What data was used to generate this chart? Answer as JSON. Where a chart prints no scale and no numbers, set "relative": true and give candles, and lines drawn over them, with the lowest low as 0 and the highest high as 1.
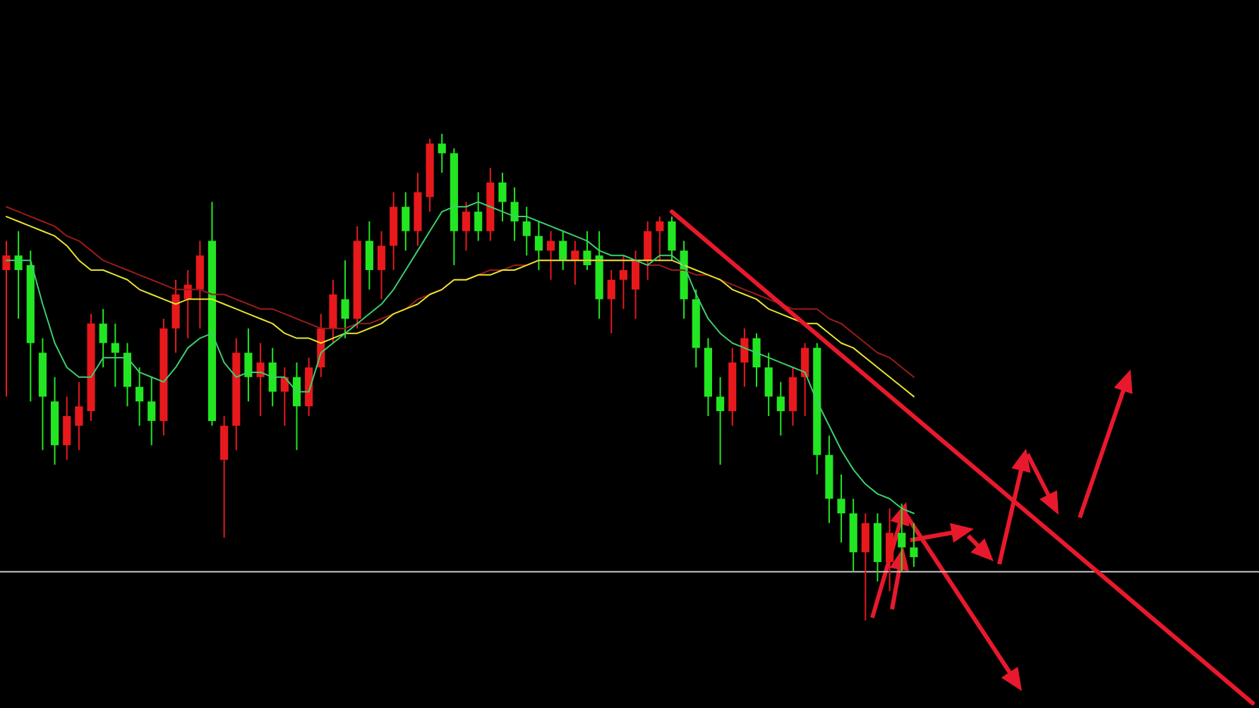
{
  "chart_data": {
    "type": "candlestick",
    "relative": true,
    "tick_labels": false,
    "categories": [
      null,
      null,
      null,
      null,
      null,
      null,
      null,
      null,
      null,
      null,
      null,
      null,
      null,
      null,
      null,
      null,
      null,
      null,
      null,
      null,
      null,
      null,
      null,
      null,
      null,
      null,
      null,
      null,
      null,
      null,
      null,
      null,
      null,
      null,
      null,
      null,
      null,
      null,
      null,
      null,
      null,
      null,
      null,
      null,
      null,
      null,
      null,
      null,
      null,
      null,
      null,
      null,
      null,
      null,
      null,
      null,
      null,
      null,
      null,
      null,
      null,
      null,
      null,
      null,
      null,
      null,
      null,
      null,
      null,
      null,
      null,
      null,
      null,
      null,
      null,
      null,
      null,
      null,
      null,
      null,
      null,
      null,
      null,
      null,
      null,
      null,
      null,
      null,
      null,
      null,
      null,
      null,
      null,
      null,
      null,
      null,
      null,
      null,
      null,
      null,
      null,
      null,
      null,
      null
    ],
    "ohlc": [
      [
        0.72,
        0.78,
        0.46,
        0.75
      ],
      [
        0.75,
        0.8,
        0.62,
        0.72
      ],
      [
        0.73,
        0.76,
        0.45,
        0.57
      ],
      [
        0.55,
        0.58,
        0.35,
        0.46
      ],
      [
        0.45,
        0.5,
        0.32,
        0.36
      ],
      [
        0.36,
        0.46,
        0.33,
        0.42
      ],
      [
        0.4,
        0.49,
        0.35,
        0.44
      ],
      [
        0.43,
        0.63,
        0.41,
        0.61
      ],
      [
        0.61,
        0.64,
        0.52,
        0.57
      ],
      [
        0.57,
        0.61,
        0.48,
        0.55
      ],
      [
        0.55,
        0.57,
        0.44,
        0.48
      ],
      [
        0.48,
        0.52,
        0.4,
        0.45
      ],
      [
        0.45,
        0.5,
        0.36,
        0.41
      ],
      [
        0.41,
        0.62,
        0.38,
        0.6
      ],
      [
        0.6,
        0.7,
        0.55,
        0.67
      ],
      [
        0.66,
        0.72,
        0.58,
        0.69
      ],
      [
        0.68,
        0.78,
        0.6,
        0.75
      ],
      [
        0.78,
        0.86,
        0.4,
        0.41
      ],
      [
        0.33,
        0.42,
        0.17,
        0.4
      ],
      [
        0.4,
        0.58,
        0.35,
        0.55
      ],
      [
        0.55,
        0.6,
        0.45,
        0.5
      ],
      [
        0.5,
        0.57,
        0.42,
        0.53
      ],
      [
        0.53,
        0.56,
        0.44,
        0.47
      ],
      [
        0.47,
        0.52,
        0.4,
        0.5
      ],
      [
        0.5,
        0.53,
        0.35,
        0.44
      ],
      [
        0.44,
        0.54,
        0.42,
        0.52
      ],
      [
        0.52,
        0.63,
        0.5,
        0.6
      ],
      [
        0.6,
        0.7,
        0.57,
        0.67
      ],
      [
        0.66,
        0.74,
        0.58,
        0.62
      ],
      [
        0.62,
        0.81,
        0.6,
        0.78
      ],
      [
        0.78,
        0.82,
        0.68,
        0.72
      ],
      [
        0.72,
        0.8,
        0.66,
        0.77
      ],
      [
        0.77,
        0.88,
        0.72,
        0.85
      ],
      [
        0.85,
        0.88,
        0.76,
        0.8
      ],
      [
        0.8,
        0.92,
        0.77,
        0.88
      ],
      [
        0.87,
        0.99,
        0.84,
        0.98
      ],
      [
        0.98,
        1.0,
        0.92,
        0.96
      ],
      [
        0.96,
        0.97,
        0.73,
        0.8
      ],
      [
        0.8,
        0.86,
        0.76,
        0.84
      ],
      [
        0.84,
        0.88,
        0.78,
        0.8
      ],
      [
        0.8,
        0.93,
        0.78,
        0.9
      ],
      [
        0.9,
        0.92,
        0.82,
        0.86
      ],
      [
        0.86,
        0.89,
        0.78,
        0.82
      ],
      [
        0.82,
        0.85,
        0.75,
        0.79
      ],
      [
        0.79,
        0.82,
        0.72,
        0.76
      ],
      [
        0.76,
        0.8,
        0.7,
        0.78
      ],
      [
        0.78,
        0.8,
        0.72,
        0.74
      ],
      [
        0.74,
        0.78,
        0.69,
        0.76
      ],
      [
        0.76,
        0.8,
        0.72,
        0.73
      ],
      [
        0.75,
        0.8,
        0.62,
        0.66
      ],
      [
        0.66,
        0.72,
        0.59,
        0.7
      ],
      [
        0.7,
        0.75,
        0.64,
        0.72
      ],
      [
        0.68,
        0.76,
        0.62,
        0.74
      ],
      [
        0.74,
        0.82,
        0.7,
        0.8
      ],
      [
        0.8,
        0.83,
        0.74,
        0.82
      ],
      [
        0.82,
        0.83,
        0.74,
        0.76
      ],
      [
        0.76,
        0.78,
        0.62,
        0.66
      ],
      [
        0.66,
        0.68,
        0.52,
        0.56
      ],
      [
        0.56,
        0.58,
        0.42,
        0.46
      ],
      [
        0.46,
        0.5,
        0.32,
        0.43
      ],
      [
        0.43,
        0.56,
        0.4,
        0.53
      ],
      [
        0.53,
        0.6,
        0.48,
        0.58
      ],
      [
        0.58,
        0.59,
        0.48,
        0.52
      ],
      [
        0.52,
        0.55,
        0.42,
        0.46
      ],
      [
        0.46,
        0.49,
        0.38,
        0.43
      ],
      [
        0.43,
        0.52,
        0.4,
        0.5
      ],
      [
        0.5,
        0.57,
        0.42,
        0.56
      ],
      [
        0.56,
        0.57,
        0.3,
        0.34
      ],
      [
        0.34,
        0.38,
        0.2,
        0.25
      ],
      [
        0.25,
        0.3,
        0.16,
        0.22
      ],
      [
        0.22,
        0.25,
        0.1,
        0.14
      ],
      [
        0.14,
        0.22,
        0.0,
        0.2
      ],
      [
        0.2,
        0.22,
        0.08,
        0.12
      ],
      [
        0.12,
        0.23,
        0.06,
        0.18
      ],
      [
        0.18,
        0.24,
        0.1,
        0.15
      ],
      [
        0.15,
        0.2,
        0.11,
        0.13
      ],
      null,
      null,
      null,
      null,
      null,
      null,
      null,
      null,
      null,
      null,
      null,
      null,
      null,
      null,
      null,
      null,
      null,
      null,
      null,
      null,
      null,
      null,
      null,
      null,
      null,
      null,
      null,
      null
    ],
    "colors": [
      "#e8191c",
      "#22e622",
      "#22e622",
      "#22e622",
      "#22e622",
      "#e8191c",
      "#e8191c",
      "#e8191c",
      "#22e622",
      "#22e622",
      "#22e622",
      "#22e622",
      "#22e622",
      "#e8191c",
      "#e8191c",
      "#e8191c",
      "#e8191c",
      "#22e622",
      "#e8191c",
      "#e8191c",
      "#22e622",
      "#e8191c",
      "#22e622",
      "#e8191c",
      "#22e622",
      "#e8191c",
      "#e8191c",
      "#e8191c",
      "#22e622",
      "#e8191c",
      "#22e622",
      "#e8191c",
      "#e8191c",
      "#22e622",
      "#e8191c",
      "#e8191c",
      "#22e622",
      "#22e622",
      "#e8191c",
      "#22e622",
      "#e8191c",
      "#22e622",
      "#22e622",
      "#22e622",
      "#22e622",
      "#e8191c",
      "#22e622",
      "#e8191c",
      "#22e622",
      "#22e622",
      "#e8191c",
      "#e8191c",
      "#e8191c",
      "#e8191c",
      "#e8191c",
      "#22e622",
      "#22e622",
      "#22e622",
      "#22e622",
      "#22e622",
      "#e8191c",
      "#e8191c",
      "#22e622",
      "#22e622",
      "#22e622",
      "#e8191c",
      "#e8191c",
      "#22e622",
      "#22e622",
      "#22e622",
      "#22e622",
      "#e8191c",
      "#22e622",
      "#e8191c",
      "#22e622",
      "#22e622",
      null,
      null,
      null,
      null,
      null,
      null,
      null,
      null,
      null,
      null,
      null,
      null,
      null,
      null,
      null,
      null,
      null,
      null,
      null,
      null,
      null,
      null,
      null,
      null,
      null,
      null,
      null,
      null
    ],
    "series": [
      {
        "type": "line",
        "color": "#9b1b1b",
        "values": [
          0.85,
          0.84,
          0.83,
          0.82,
          0.81,
          0.79,
          0.78,
          0.76,
          0.74,
          0.73,
          0.72,
          0.71,
          0.7,
          0.69,
          0.68,
          0.68,
          0.68,
          0.67,
          0.67,
          0.66,
          0.65,
          0.64,
          0.64,
          0.63,
          0.62,
          0.61,
          0.6,
          0.6,
          0.6,
          0.61,
          0.61,
          0.62,
          0.63,
          0.64,
          0.66,
          0.67,
          0.68,
          0.7,
          0.7,
          0.71,
          0.72,
          0.72,
          0.73,
          0.73,
          0.74,
          0.74,
          0.74,
          0.74,
          0.74,
          0.74,
          0.74,
          0.74,
          0.74,
          0.73,
          0.73,
          0.72,
          0.72,
          0.71,
          0.71,
          0.7,
          0.69,
          0.68,
          0.67,
          0.66,
          0.65,
          0.64,
          0.64,
          0.64,
          0.62,
          0.61,
          0.59,
          0.57,
          0.55,
          0.54,
          0.52,
          0.5,
          null,
          null,
          null,
          null,
          null,
          null,
          null,
          null,
          null,
          null,
          null,
          null,
          null,
          null,
          null,
          null,
          null,
          null,
          null,
          null,
          null,
          null,
          null,
          null,
          null,
          null,
          null,
          null
        ]
      },
      {
        "type": "line",
        "color": "#e6e62e",
        "values": [
          0.83,
          0.82,
          0.81,
          0.8,
          0.79,
          0.77,
          0.74,
          0.72,
          0.72,
          0.71,
          0.7,
          0.68,
          0.67,
          0.66,
          0.65,
          0.66,
          0.66,
          0.66,
          0.65,
          0.64,
          0.63,
          0.62,
          0.61,
          0.59,
          0.58,
          0.58,
          0.57,
          0.58,
          0.59,
          0.59,
          0.6,
          0.61,
          0.63,
          0.64,
          0.65,
          0.67,
          0.68,
          0.7,
          0.7,
          0.71,
          0.71,
          0.72,
          0.72,
          0.73,
          0.74,
          0.74,
          0.74,
          0.74,
          0.74,
          0.74,
          0.74,
          0.74,
          0.74,
          0.74,
          0.74,
          0.74,
          0.73,
          0.72,
          0.71,
          0.7,
          0.68,
          0.67,
          0.66,
          0.64,
          0.63,
          0.62,
          0.61,
          0.61,
          0.59,
          0.57,
          0.56,
          0.54,
          0.52,
          0.5,
          0.48,
          0.46,
          null,
          null,
          null,
          null,
          null,
          null,
          null,
          null,
          null,
          null,
          null,
          null,
          null,
          null,
          null,
          null,
          null,
          null,
          null,
          null,
          null,
          null,
          null,
          null,
          null,
          null,
          null,
          null
        ]
      },
      {
        "type": "line",
        "color": "#3ccf6e",
        "values": [
          0.74,
          0.74,
          0.74,
          0.65,
          0.57,
          0.52,
          0.5,
          0.5,
          0.54,
          0.54,
          0.54,
          0.51,
          0.5,
          0.49,
          0.52,
          0.56,
          0.58,
          0.59,
          0.53,
          0.5,
          0.51,
          0.51,
          0.5,
          0.5,
          0.47,
          0.47,
          0.55,
          0.57,
          0.59,
          0.61,
          0.63,
          0.65,
          0.68,
          0.72,
          0.76,
          0.8,
          0.84,
          0.85,
          0.85,
          0.86,
          0.85,
          0.84,
          0.83,
          0.83,
          0.82,
          0.81,
          0.8,
          0.79,
          0.78,
          0.76,
          0.75,
          0.75,
          0.74,
          0.73,
          0.75,
          0.75,
          0.73,
          0.67,
          0.62,
          0.59,
          0.57,
          0.56,
          0.55,
          0.54,
          0.53,
          0.52,
          0.51,
          0.45,
          0.4,
          0.35,
          0.31,
          0.28,
          0.26,
          0.25,
          0.23,
          0.22,
          null,
          null,
          null,
          null,
          null,
          null,
          null,
          null,
          null,
          null,
          null,
          null,
          null,
          null,
          null,
          null,
          null,
          null,
          null,
          null,
          null,
          null,
          null,
          null,
          null,
          null,
          null,
          null
        ]
      },
      {
        "type": "line",
        "color": "#e8192c",
        "values": [
          null,
          null,
          null,
          null,
          null,
          null,
          null,
          null,
          null,
          null,
          null,
          null,
          null,
          null,
          null,
          null,
          null,
          null,
          null,
          null,
          null,
          null,
          null,
          null,
          null,
          null,
          null,
          null,
          null,
          null,
          null,
          null,
          null,
          null,
          null,
          null,
          null,
          null,
          null,
          null,
          null,
          null,
          null,
          null,
          null,
          null,
          null,
          null,
          null,
          null,
          null,
          null,
          null,
          null,
          null,
          0.84,
          null,
          null,
          null,
          null,
          null,
          null,
          null,
          null,
          null,
          null,
          null,
          null,
          null,
          null,
          null,
          null,
          null,
          null,
          null,
          null,
          null,
          null,
          null,
          null,
          null,
          null,
          null,
          null,
          null,
          null,
          null,
          null,
          null,
          null,
          null,
          null,
          null,
          null,
          null,
          null,
          null,
          null,
          null,
          null,
          null,
          null,
          null,
          -0.17
        ]
      }
    ],
    "ref_lines": [
      {
        "axis": "y",
        "value": 0.1,
        "color": "#c8c8c8"
      }
    ]
  }
}
